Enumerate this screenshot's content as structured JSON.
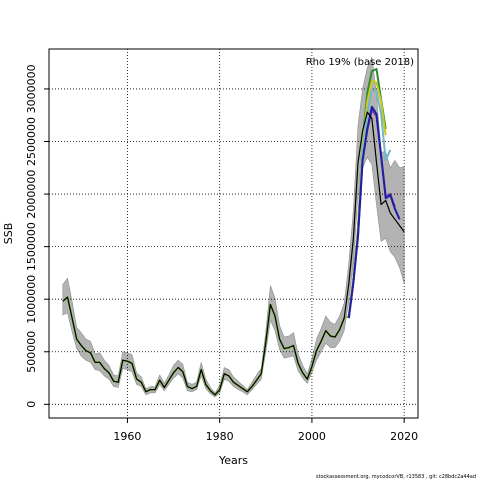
{
  "chart_data": {
    "type": "line",
    "title": "",
    "annotation": "Rho 19% (base 2018)",
    "xlabel": "Years",
    "ylabel": "SSB",
    "footer": "stockassessment.org, mycodcorVB, r13583 , git: c28bdc2a44ad",
    "xlim": [
      1943,
      2023
    ],
    "ylim": [
      -130000,
      3380000
    ],
    "x_ticks": [
      1960,
      1980,
      2000,
      2020
    ],
    "y_ticks": [
      0,
      500000,
      1000000,
      1500000,
      2000000,
      2500000,
      3000000
    ],
    "x_tick_labels": [
      "1960",
      "1980",
      "2000",
      "2020"
    ],
    "y_tick_labels": [
      "0",
      "500000",
      "1000000",
      "1500000",
      "2000000",
      "2500000",
      "3000000"
    ],
    "grid": true,
    "colors": {
      "band": "#b3b3b3",
      "band_edge": "#8c8c8c",
      "base": "#000000",
      "peel1": "#1f1f9f",
      "peel2": "#8a3ab9",
      "peel3": "#72b8c9",
      "peel4": "#c8c823",
      "peel5": "#2e8b2e",
      "peel6": "#7dba40"
    },
    "base": {
      "x": [
        1946,
        1947,
        1948,
        1949,
        1950,
        1951,
        1952,
        1953,
        1954,
        1955,
        1956,
        1957,
        1958,
        1959,
        1960,
        1961,
        1962,
        1963,
        1964,
        1965,
        1966,
        1967,
        1968,
        1969,
        1970,
        1971,
        1972,
        1973,
        1974,
        1975,
        1976,
        1977,
        1978,
        1979,
        1980,
        1981,
        1982,
        1983,
        1984,
        1985,
        1986,
        1987,
        1988,
        1989,
        1990,
        1991,
        1992,
        1993,
        1994,
        1995,
        1996,
        1997,
        1998,
        1999,
        2000,
        2001,
        2002,
        2003,
        2004,
        2005,
        2006,
        2007,
        2008,
        2009,
        2010,
        2011,
        2012,
        2013,
        2014,
        2015,
        2016,
        2017,
        2018,
        2019,
        2020
      ],
      "y": [
        980000,
        1020000,
        820000,
        620000,
        560000,
        510000,
        490000,
        400000,
        400000,
        340000,
        300000,
        220000,
        210000,
        420000,
        410000,
        390000,
        240000,
        210000,
        120000,
        140000,
        140000,
        230000,
        160000,
        230000,
        300000,
        350000,
        310000,
        170000,
        150000,
        170000,
        330000,
        190000,
        130000,
        90000,
        140000,
        290000,
        270000,
        210000,
        180000,
        150000,
        120000,
        170000,
        230000,
        290000,
        590000,
        950000,
        840000,
        620000,
        530000,
        540000,
        560000,
        390000,
        300000,
        240000,
        360000,
        510000,
        600000,
        700000,
        650000,
        640000,
        710000,
        820000,
        1150000,
        1580000,
        2300000,
        2600000,
        2780000,
        2720000,
        2300000,
        1900000,
        1940000,
        1820000,
        1760000,
        1700000,
        1640000
      ],
      "lo": [
        850000,
        870000,
        690000,
        530000,
        460000,
        420000,
        400000,
        330000,
        320000,
        270000,
        240000,
        170000,
        160000,
        340000,
        330000,
        310000,
        190000,
        170000,
        90000,
        110000,
        110000,
        190000,
        130000,
        190000,
        250000,
        290000,
        250000,
        130000,
        120000,
        140000,
        270000,
        150000,
        100000,
        70000,
        110000,
        240000,
        220000,
        170000,
        140000,
        120000,
        90000,
        140000,
        190000,
        240000,
        500000,
        800000,
        700000,
        520000,
        440000,
        450000,
        460000,
        320000,
        250000,
        200000,
        300000,
        420000,
        500000,
        580000,
        540000,
        540000,
        600000,
        700000,
        980000,
        1350000,
        2000000,
        2250000,
        2350000,
        2280000,
        1900000,
        1550000,
        1580000,
        1450000,
        1400000,
        1300000,
        1150000
      ],
      "hi": [
        1140000,
        1200000,
        980000,
        730000,
        680000,
        620000,
        600000,
        480000,
        490000,
        420000,
        370000,
        280000,
        270000,
        500000,
        490000,
        470000,
        300000,
        260000,
        150000,
        170000,
        170000,
        280000,
        200000,
        280000,
        370000,
        420000,
        380000,
        210000,
        190000,
        210000,
        400000,
        240000,
        160000,
        110000,
        180000,
        350000,
        330000,
        260000,
        220000,
        180000,
        140000,
        210000,
        280000,
        340000,
        690000,
        1130000,
        1010000,
        750000,
        640000,
        650000,
        680000,
        480000,
        370000,
        290000,
        430000,
        620000,
        720000,
        840000,
        780000,
        760000,
        840000,
        960000,
        1340000,
        1850000,
        2650000,
        3000000,
        3200000,
        3300000,
        2950000,
        2400000,
        2400000,
        2250000,
        2320000,
        2250000,
        2260000
      ]
    },
    "series": [
      {
        "color_key": "peel1",
        "x": [
          2008,
          2009,
          2010,
          2011,
          2012,
          2013,
          2014,
          2015,
          2016,
          2017,
          2018,
          2019
        ],
        "y": [
          820000,
          1160000,
          1600000,
          2320000,
          2620000,
          2830000,
          2760000,
          2370000,
          1960000,
          1990000,
          1860000,
          1760000
        ]
      },
      {
        "color_key": "peel2",
        "x": [
          2008,
          2009,
          2010,
          2011,
          2012,
          2013,
          2014,
          2015,
          2016,
          2017,
          2018
        ],
        "y": [
          820000,
          1160000,
          1600000,
          2320000,
          2610000,
          2800000,
          2740000,
          2360000,
          1980000,
          2000000,
          1880000
        ]
      },
      {
        "color_key": "peel3",
        "x": [
          2008,
          2009,
          2010,
          2011,
          2012,
          2013,
          2014,
          2015,
          2016,
          2017
        ],
        "y": [
          830000,
          1180000,
          1640000,
          2420000,
          2760000,
          2990000,
          2980000,
          2760000,
          2320000,
          2420000
        ]
      },
      {
        "color_key": "peel4",
        "x": [
          2008,
          2009,
          2010,
          2011,
          2012,
          2013,
          2014,
          2015,
          2016
        ],
        "y": [
          840000,
          1200000,
          1680000,
          2480000,
          2880000,
          3080000,
          3060000,
          2880000,
          2560000
        ]
      },
      {
        "color_key": "peel5",
        "x": [
          2008,
          2009,
          2010,
          2011,
          2012,
          2013,
          2014,
          2015,
          2016
        ],
        "y": [
          840000,
          1200000,
          1680000,
          2500000,
          2960000,
          3170000,
          3190000,
          2900000,
          2620000
        ]
      },
      {
        "color_key": "peel6",
        "x": [
          1946,
          1947,
          1948,
          1949,
          1950,
          1951,
          1952,
          1953,
          1954,
          1955,
          1956,
          1957,
          1958,
          1959,
          1960,
          1961,
          1962,
          1963,
          1964,
          1965,
          1966,
          1967,
          1968,
          1969,
          1970,
          1971,
          1972,
          1973,
          1974,
          1975,
          1976,
          1977,
          1978,
          1979,
          1980,
          1981,
          1982,
          1983,
          1984,
          1985,
          1986,
          1987,
          1988,
          1989,
          1990,
          1991,
          1992,
          1993,
          1994,
          1995,
          1996,
          1997,
          1998,
          1999,
          2000,
          2001,
          2002,
          2003,
          2004,
          2005,
          2006,
          2007,
          2008
        ],
        "y": [
          980000,
          1020000,
          820000,
          620000,
          560000,
          510000,
          490000,
          400000,
          400000,
          340000,
          300000,
          220000,
          210000,
          420000,
          410000,
          390000,
          240000,
          210000,
          120000,
          140000,
          140000,
          230000,
          160000,
          230000,
          300000,
          350000,
          310000,
          170000,
          150000,
          170000,
          330000,
          190000,
          130000,
          90000,
          140000,
          290000,
          270000,
          210000,
          180000,
          150000,
          120000,
          170000,
          230000,
          290000,
          590000,
          950000,
          840000,
          620000,
          530000,
          540000,
          560000,
          390000,
          300000,
          240000,
          360000,
          510000,
          600000,
          700000,
          650000,
          640000,
          710000,
          820000,
          840000
        ]
      }
    ]
  }
}
